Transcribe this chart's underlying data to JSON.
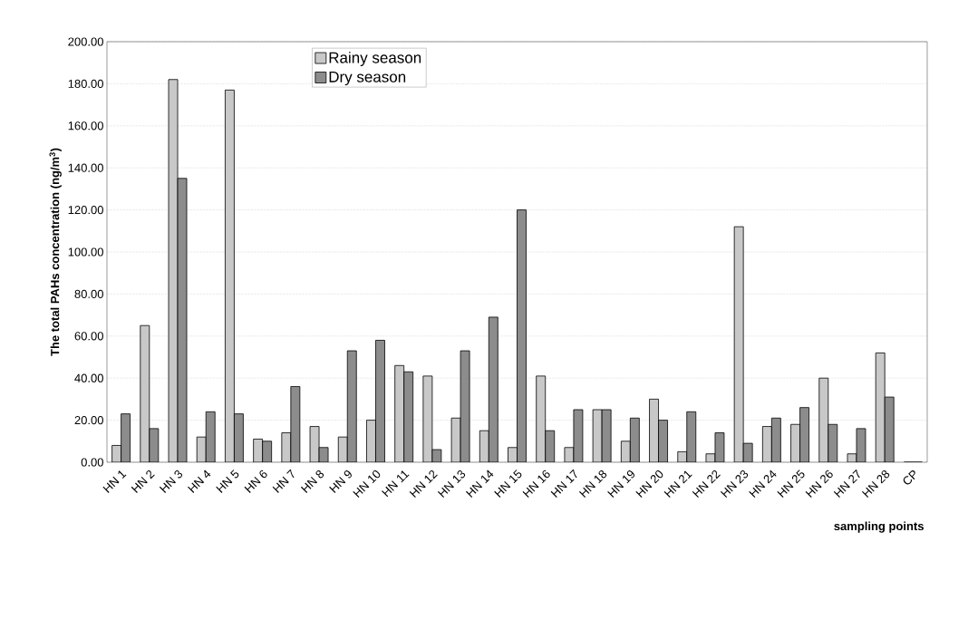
{
  "chart_data": {
    "type": "bar",
    "xlabel": "sampling points",
    "ylabel": "The total PAHs concentration (ng/m$^{3}$)",
    "categories": [
      "HN 1",
      "HN 2",
      "HN 3",
      "HN 4",
      "HN 5",
      "HN 6",
      "HN 7",
      "HN 8",
      "HN 9",
      "HN 10",
      "HN 11",
      "HN 12",
      "HN 13",
      "HN 14",
      "HN 15",
      "HN 16",
      "HN 17",
      "HN 18",
      "HN 19",
      "HN 20",
      "HN 21",
      "HN 22",
      "HN 23",
      "HN 24",
      "HN 25",
      "HN 26",
      "HN 27",
      "HN 28",
      "CP"
    ],
    "series": [
      {
        "name": "Rainy season",
        "color": "#c8c8c8",
        "values": [
          8,
          65,
          182,
          12,
          177,
          11,
          14,
          17,
          12,
          20,
          46,
          41,
          21,
          15,
          7,
          41,
          7,
          25,
          10,
          30,
          5,
          4,
          112,
          17,
          18,
          40,
          4,
          52,
          0
        ]
      },
      {
        "name": "Dry season",
        "color": "#8c8c8c",
        "values": [
          23,
          16,
          135,
          24,
          23,
          10,
          36,
          7,
          53,
          58,
          43,
          6,
          53,
          69,
          120,
          15,
          25,
          25,
          21,
          20,
          24,
          14,
          9,
          21,
          26,
          18,
          16,
          31,
          0
        ]
      }
    ],
    "ylim": [
      0,
      200
    ],
    "yticks": [
      {
        "value": 0,
        "label": "0.00"
      },
      {
        "value": 20,
        "label": "20.00"
      },
      {
        "value": 40,
        "label": "40.00"
      },
      {
        "value": 60,
        "label": "60.00"
      },
      {
        "value": 80,
        "label": "80.00"
      },
      {
        "value": 100,
        "label": "100.00"
      },
      {
        "value": 120,
        "label": "120.00"
      },
      {
        "value": 140,
        "label": "140.00"
      },
      {
        "value": 160,
        "label": "160.00"
      },
      {
        "value": 180,
        "label": "180.00"
      },
      {
        "value": 200,
        "label": "200.00"
      }
    ],
    "grid": "y",
    "legend": "top left"
  }
}
